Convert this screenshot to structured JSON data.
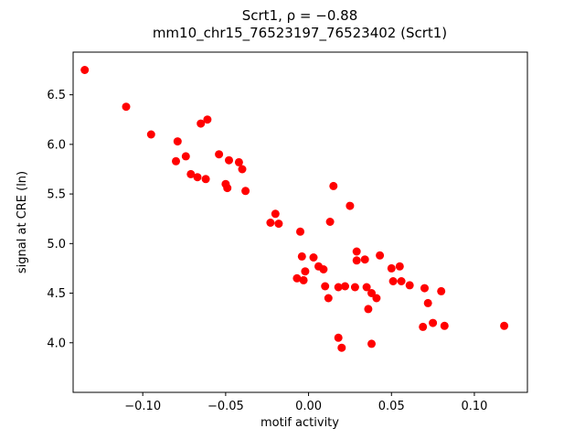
{
  "chart_data": {
    "type": "scatter",
    "title": "Scrt1, ρ = −0.88",
    "subtitle": "mm10_chr15_76523197_76523402 (Scrt1)",
    "xlabel": "motif activity",
    "ylabel": "signal at CRE (ln)",
    "xlim": [
      -0.142,
      0.132
    ],
    "ylim": [
      3.5,
      6.93
    ],
    "xticks": [
      -0.1,
      -0.05,
      0.0,
      0.05,
      0.1
    ],
    "xtick_labels": [
      "−0.10",
      "−0.05",
      "0.00",
      "0.05",
      "0.10"
    ],
    "yticks": [
      4.0,
      4.5,
      5.0,
      5.5,
      6.0,
      6.5
    ],
    "ytick_labels": [
      "4.0",
      "4.5",
      "5.0",
      "5.5",
      "6.0",
      "6.5"
    ],
    "grid": false,
    "legend": "none",
    "marker_color": "#ff0000",
    "marker_radius": 4.5,
    "points": [
      [
        -0.135,
        6.75
      ],
      [
        -0.11,
        6.38
      ],
      [
        -0.095,
        6.1
      ],
      [
        -0.079,
        6.03
      ],
      [
        -0.065,
        6.21
      ],
      [
        -0.061,
        6.25
      ],
      [
        -0.08,
        5.83
      ],
      [
        -0.074,
        5.88
      ],
      [
        -0.071,
        5.7
      ],
      [
        -0.067,
        5.67
      ],
      [
        -0.062,
        5.65
      ],
      [
        -0.054,
        5.9
      ],
      [
        -0.048,
        5.84
      ],
      [
        -0.05,
        5.6
      ],
      [
        -0.049,
        5.56
      ],
      [
        -0.042,
        5.82
      ],
      [
        -0.04,
        5.75
      ],
      [
        -0.038,
        5.53
      ],
      [
        -0.023,
        5.21
      ],
      [
        -0.02,
        5.3
      ],
      [
        -0.018,
        5.2
      ],
      [
        -0.005,
        5.12
      ],
      [
        0.015,
        5.58
      ],
      [
        0.013,
        5.22
      ],
      [
        0.025,
        5.38
      ],
      [
        -0.004,
        4.87
      ],
      [
        0.003,
        4.86
      ],
      [
        -0.002,
        4.72
      ],
      [
        -0.007,
        4.65
      ],
      [
        -0.003,
        4.63
      ],
      [
        0.006,
        4.77
      ],
      [
        0.009,
        4.74
      ],
      [
        0.01,
        4.57
      ],
      [
        0.012,
        4.45
      ],
      [
        0.018,
        4.56
      ],
      [
        0.022,
        4.57
      ],
      [
        0.029,
        4.92
      ],
      [
        0.029,
        4.83
      ],
      [
        0.034,
        4.84
      ],
      [
        0.028,
        4.56
      ],
      [
        0.035,
        4.56
      ],
      [
        0.038,
        4.5
      ],
      [
        0.041,
        4.45
      ],
      [
        0.036,
        4.34
      ],
      [
        0.043,
        4.88
      ],
      [
        0.05,
        4.75
      ],
      [
        0.055,
        4.77
      ],
      [
        0.051,
        4.62
      ],
      [
        0.056,
        4.62
      ],
      [
        0.061,
        4.58
      ],
      [
        0.07,
        4.55
      ],
      [
        0.072,
        4.4
      ],
      [
        0.08,
        4.52
      ],
      [
        0.069,
        4.16
      ],
      [
        0.075,
        4.2
      ],
      [
        0.082,
        4.17
      ],
      [
        0.118,
        4.17
      ],
      [
        0.018,
        4.05
      ],
      [
        0.02,
        3.95
      ],
      [
        0.038,
        3.99
      ]
    ]
  }
}
